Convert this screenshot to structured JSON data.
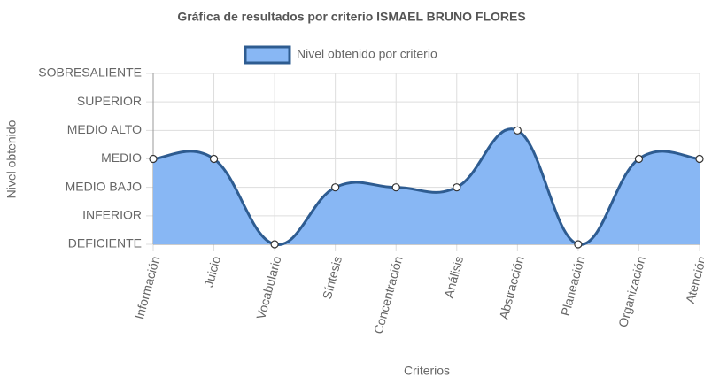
{
  "chart_data": {
    "type": "line",
    "title": "Gráfica de resultados por criterio ISMAEL BRUNO FLORES",
    "x_label": "Criterios",
    "y_label": "Nivel obtenido",
    "categories": [
      "Información",
      "Juicio",
      "Vocabulario",
      "Síntesis",
      "Concentración",
      "Análisis",
      "Abstracción",
      "Planeación",
      "Organización",
      "Atención"
    ],
    "series": [
      {
        "name": "Nivel obtenido por criterio",
        "color": "#2e5c91",
        "fill": "#88b7f4",
        "values": [
          3,
          3,
          0,
          2,
          2,
          2,
          4,
          0,
          3,
          3
        ]
      }
    ],
    "ylim": [
      0,
      6
    ],
    "yticks": [
      {
        "value": 0,
        "label": "DEFICIENTE"
      },
      {
        "value": 1,
        "label": "INFERIOR"
      },
      {
        "value": 2,
        "label": "MEDIO BAJO"
      },
      {
        "value": 3,
        "label": "MEDIO"
      },
      {
        "value": 4,
        "label": "MEDIO ALTO"
      },
      {
        "value": 5,
        "label": "SUPERIOR"
      },
      {
        "value": 6,
        "label": "SOBRESALIENTE"
      }
    ],
    "grid": true
  }
}
